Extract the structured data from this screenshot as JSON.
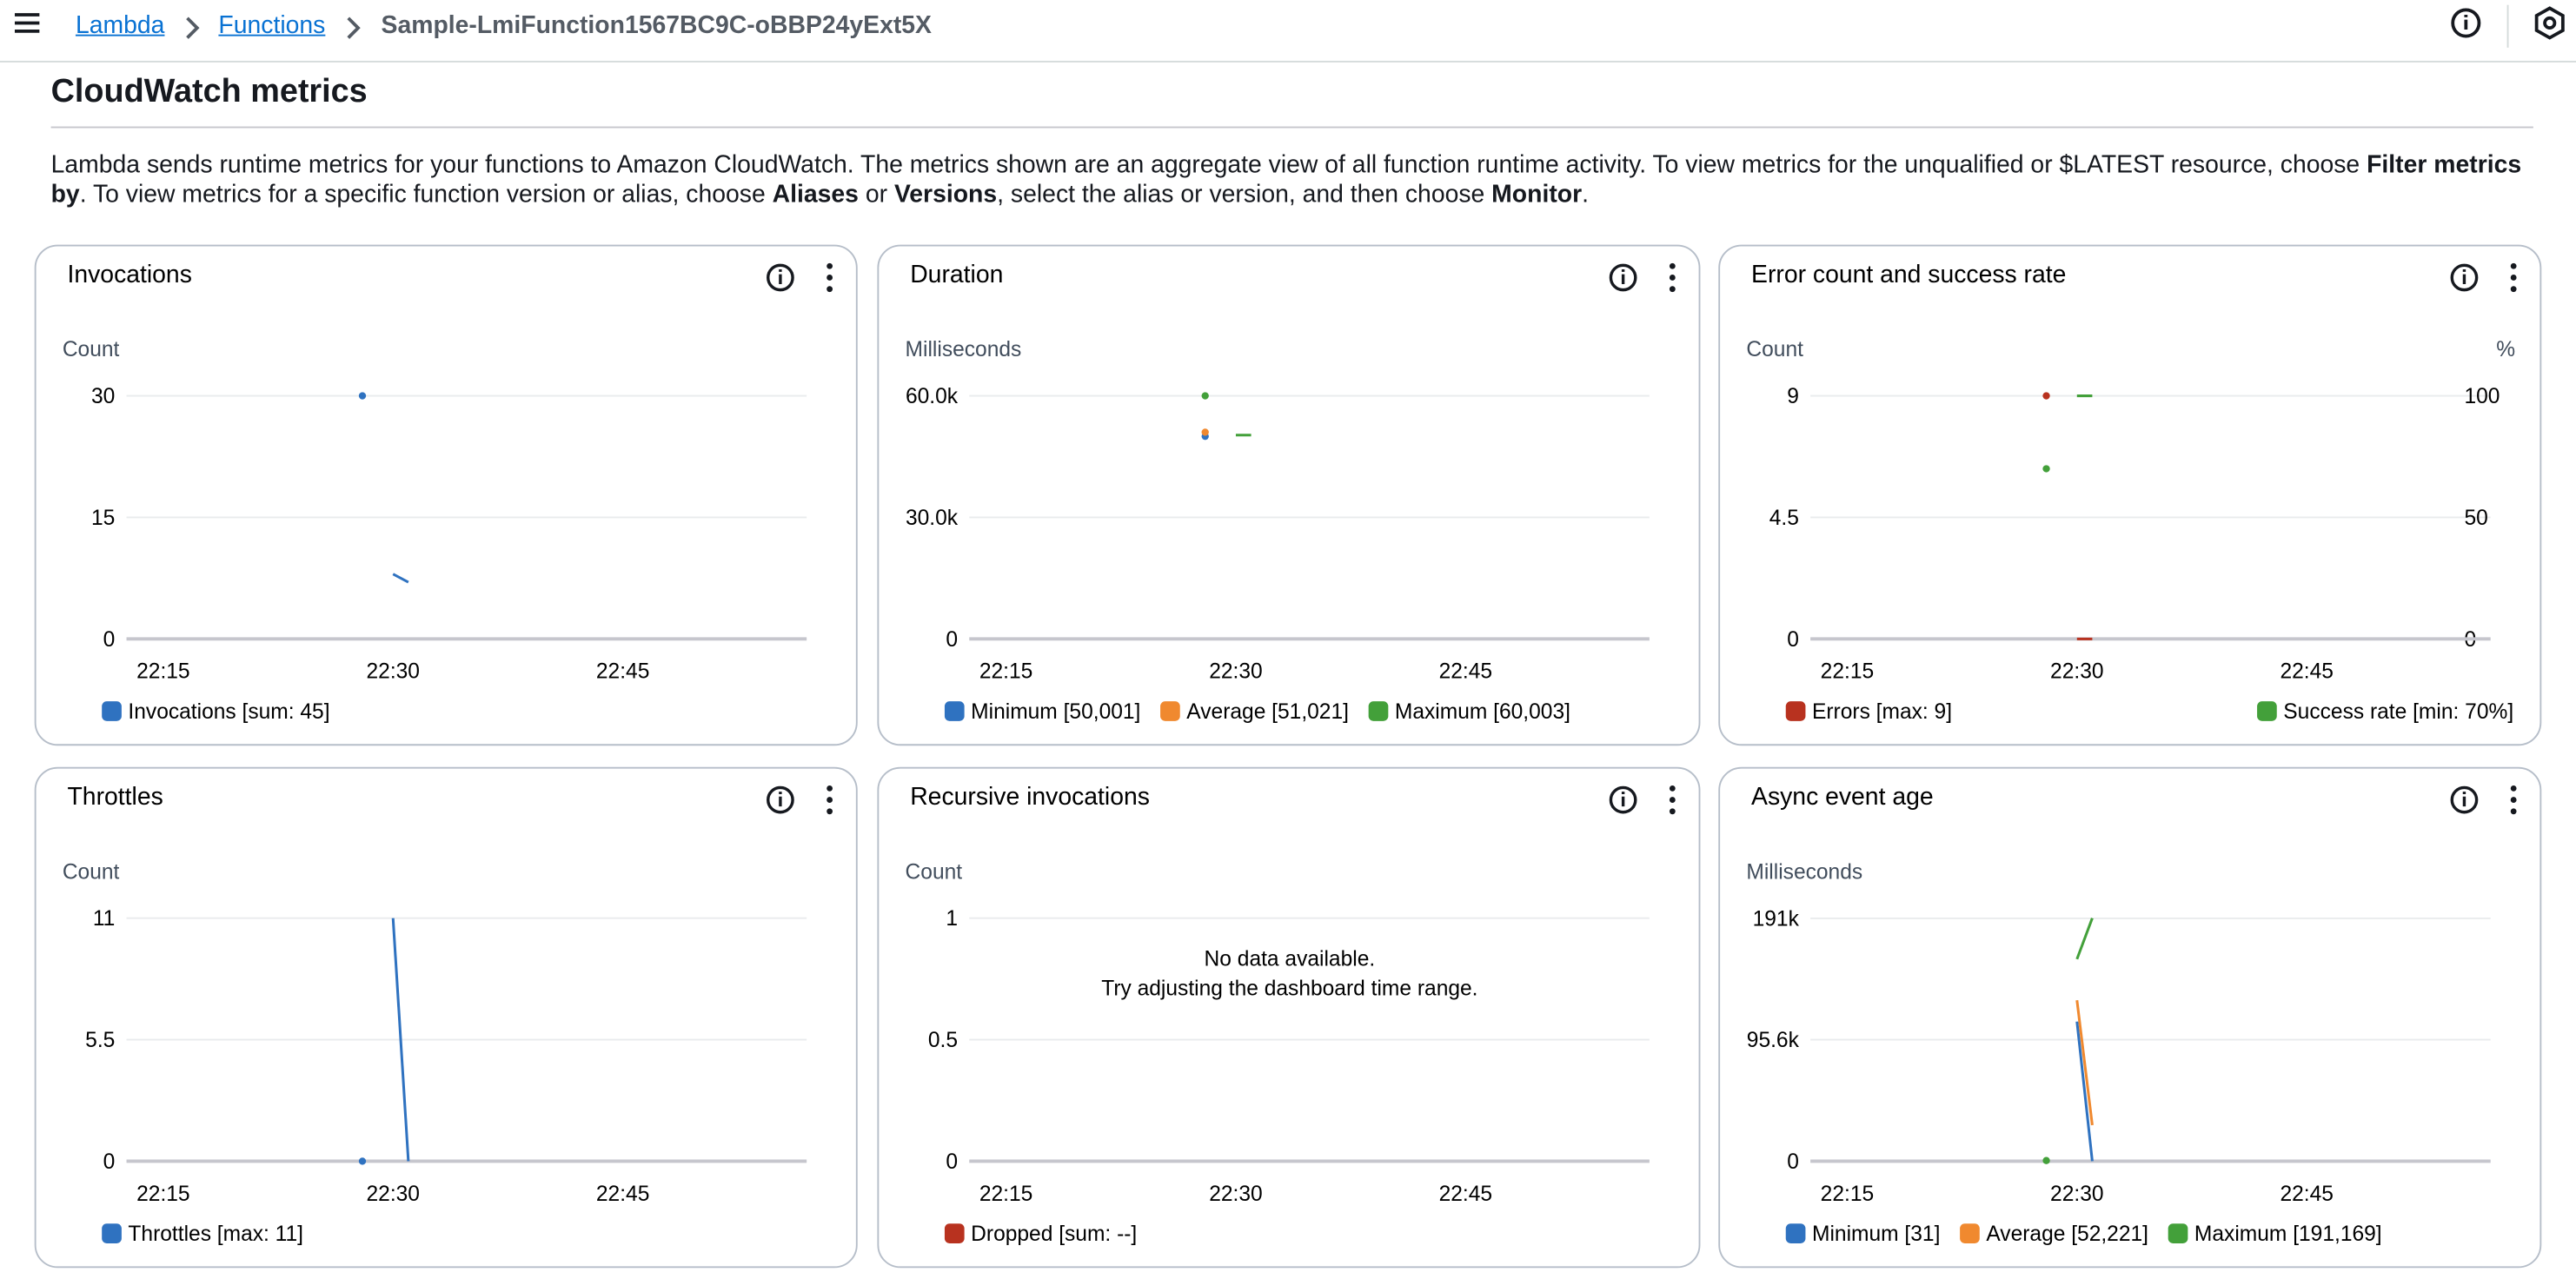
{
  "header": {
    "breadcrumbs": [
      "Lambda",
      "Functions",
      "Sample-LmiFunction1567BC9C-oBBP24yExt5X"
    ]
  },
  "section": {
    "title": "CloudWatch metrics",
    "description": [
      "Lambda sends runtime metrics for your functions to Amazon CloudWatch. The metrics shown are an aggregate view of all function runtime activity. To view metrics for the unqualified or $LATEST resource, choose ",
      "Filter metrics by",
      ". To view metrics for a specific function version or alias, choose ",
      "Aliases",
      " or ",
      "Versions",
      ", select the alias or version, and then choose ",
      "Monitor",
      "."
    ]
  },
  "chart_data": [
    {
      "type": "line",
      "title": "Invocations",
      "y_label": "Count",
      "xlim": [
        1332.6,
        1377
      ],
      "xticks": [
        {
          "value": 1335,
          "label": "22:15"
        },
        {
          "value": 1350,
          "label": "22:30"
        },
        {
          "value": 1365,
          "label": "22:45"
        }
      ],
      "ylim": [
        0,
        30
      ],
      "yticks": [
        0,
        15,
        30
      ],
      "grid": true,
      "series": [
        {
          "name": "Invocations [sum: 45]",
          "color": "#2f72c0",
          "x": [
            1348,
            1349,
            1350,
            1351
          ],
          "values": [
            30,
            null,
            8,
            7
          ]
        }
      ]
    },
    {
      "type": "line",
      "title": "Duration",
      "y_label": "Milliseconds",
      "xlim": [
        1332.6,
        1377
      ],
      "xticks": [
        {
          "value": 1335,
          "label": "22:15"
        },
        {
          "value": 1350,
          "label": "22:30"
        },
        {
          "value": 1365,
          "label": "22:45"
        }
      ],
      "ylim": [
        0,
        60000
      ],
      "yticks": [
        0,
        {
          "value": 30000,
          "label": "30.0k"
        },
        {
          "value": 60000,
          "label": "60.0k"
        }
      ],
      "grid": true,
      "series": [
        {
          "name": "Minimum [50,001]",
          "color": "#2f72c0",
          "x": [
            1348
          ],
          "values": [
            50001
          ]
        },
        {
          "name": "Average [51,021]",
          "color": "#f0892f",
          "x": [
            1348
          ],
          "values": [
            51021
          ]
        },
        {
          "name": "Maximum [60,003]",
          "color": "#43a03a",
          "x": [
            1348,
            1349,
            1350,
            1351
          ],
          "values": [
            60003,
            null,
            50300,
            50300
          ]
        }
      ]
    },
    {
      "type": "line",
      "title": "Error count and success rate",
      "y_label": "Count",
      "y2_label": "%",
      "xlim": [
        1332.6,
        1377
      ],
      "xticks": [
        {
          "value": 1335,
          "label": "22:15"
        },
        {
          "value": 1350,
          "label": "22:30"
        },
        {
          "value": 1365,
          "label": "22:45"
        }
      ],
      "ylim": [
        0,
        9
      ],
      "yticks": [
        0,
        4.5,
        9
      ],
      "y2lim": [
        0,
        100
      ],
      "y2ticks": [
        0,
        50,
        100
      ],
      "grid": true,
      "series": [
        {
          "name": "Errors [max: 9]",
          "color": "#b8321f",
          "x": [
            1348,
            1349,
            1350,
            1351
          ],
          "values": [
            9,
            null,
            0,
            0
          ]
        },
        {
          "name": "Success rate [min: 70%]",
          "color": "#43a03a",
          "axis": "y2",
          "x": [
            1348,
            1349,
            1350,
            1351
          ],
          "values": [
            70,
            null,
            100,
            100
          ]
        }
      ]
    },
    {
      "type": "line",
      "title": "Throttles",
      "y_label": "Count",
      "xlim": [
        1332.6,
        1377
      ],
      "xticks": [
        {
          "value": 1335,
          "label": "22:15"
        },
        {
          "value": 1350,
          "label": "22:30"
        },
        {
          "value": 1365,
          "label": "22:45"
        }
      ],
      "ylim": [
        0,
        11
      ],
      "yticks": [
        0,
        5.5,
        11
      ],
      "grid": true,
      "series": [
        {
          "name": "Throttles [max: 11]",
          "color": "#2f72c0",
          "x": [
            1348,
            1349,
            1350,
            1351
          ],
          "values": [
            0,
            null,
            11,
            0
          ]
        }
      ]
    },
    {
      "type": "line",
      "title": "Recursive invocations",
      "y_label": "Count",
      "xlim": [
        1332.6,
        1377
      ],
      "xticks": [
        {
          "value": 1335,
          "label": "22:15"
        },
        {
          "value": 1350,
          "label": "22:30"
        },
        {
          "value": 1365,
          "label": "22:45"
        }
      ],
      "ylim": [
        0,
        1
      ],
      "yticks": [
        0,
        0.5,
        1
      ],
      "grid": true,
      "message": [
        "No data available.",
        "Try adjusting the dashboard time range."
      ],
      "series": [
        {
          "name": "Dropped [sum: --]",
          "color": "#b8321f",
          "x": [],
          "values": []
        }
      ]
    },
    {
      "type": "line",
      "title": "Async event age",
      "y_label": "Milliseconds",
      "xlim": [
        1332.6,
        1377
      ],
      "xticks": [
        {
          "value": 1335,
          "label": "22:15"
        },
        {
          "value": 1350,
          "label": "22:30"
        },
        {
          "value": 1365,
          "label": "22:45"
        }
      ],
      "ylim": [
        0,
        191169
      ],
      "yticks": [
        0,
        {
          "value": 95600,
          "label": "95.6k"
        },
        {
          "value": 191000,
          "label": "191k"
        }
      ],
      "grid": true,
      "series": [
        {
          "name": "Minimum [31]",
          "color": "#2f72c0",
          "x": [
            1350,
            1351
          ],
          "values": [
            109800,
            31
          ]
        },
        {
          "name": "Average [52,221]",
          "color": "#f0892f",
          "x": [
            1350,
            1351
          ],
          "values": [
            126600,
            28400
          ]
        },
        {
          "name": "Maximum [191,169]",
          "color": "#43a03a",
          "x": [
            1348,
            1349,
            1350,
            1351
          ],
          "values": [
            500,
            null,
            158900,
            191169
          ]
        }
      ]
    }
  ]
}
